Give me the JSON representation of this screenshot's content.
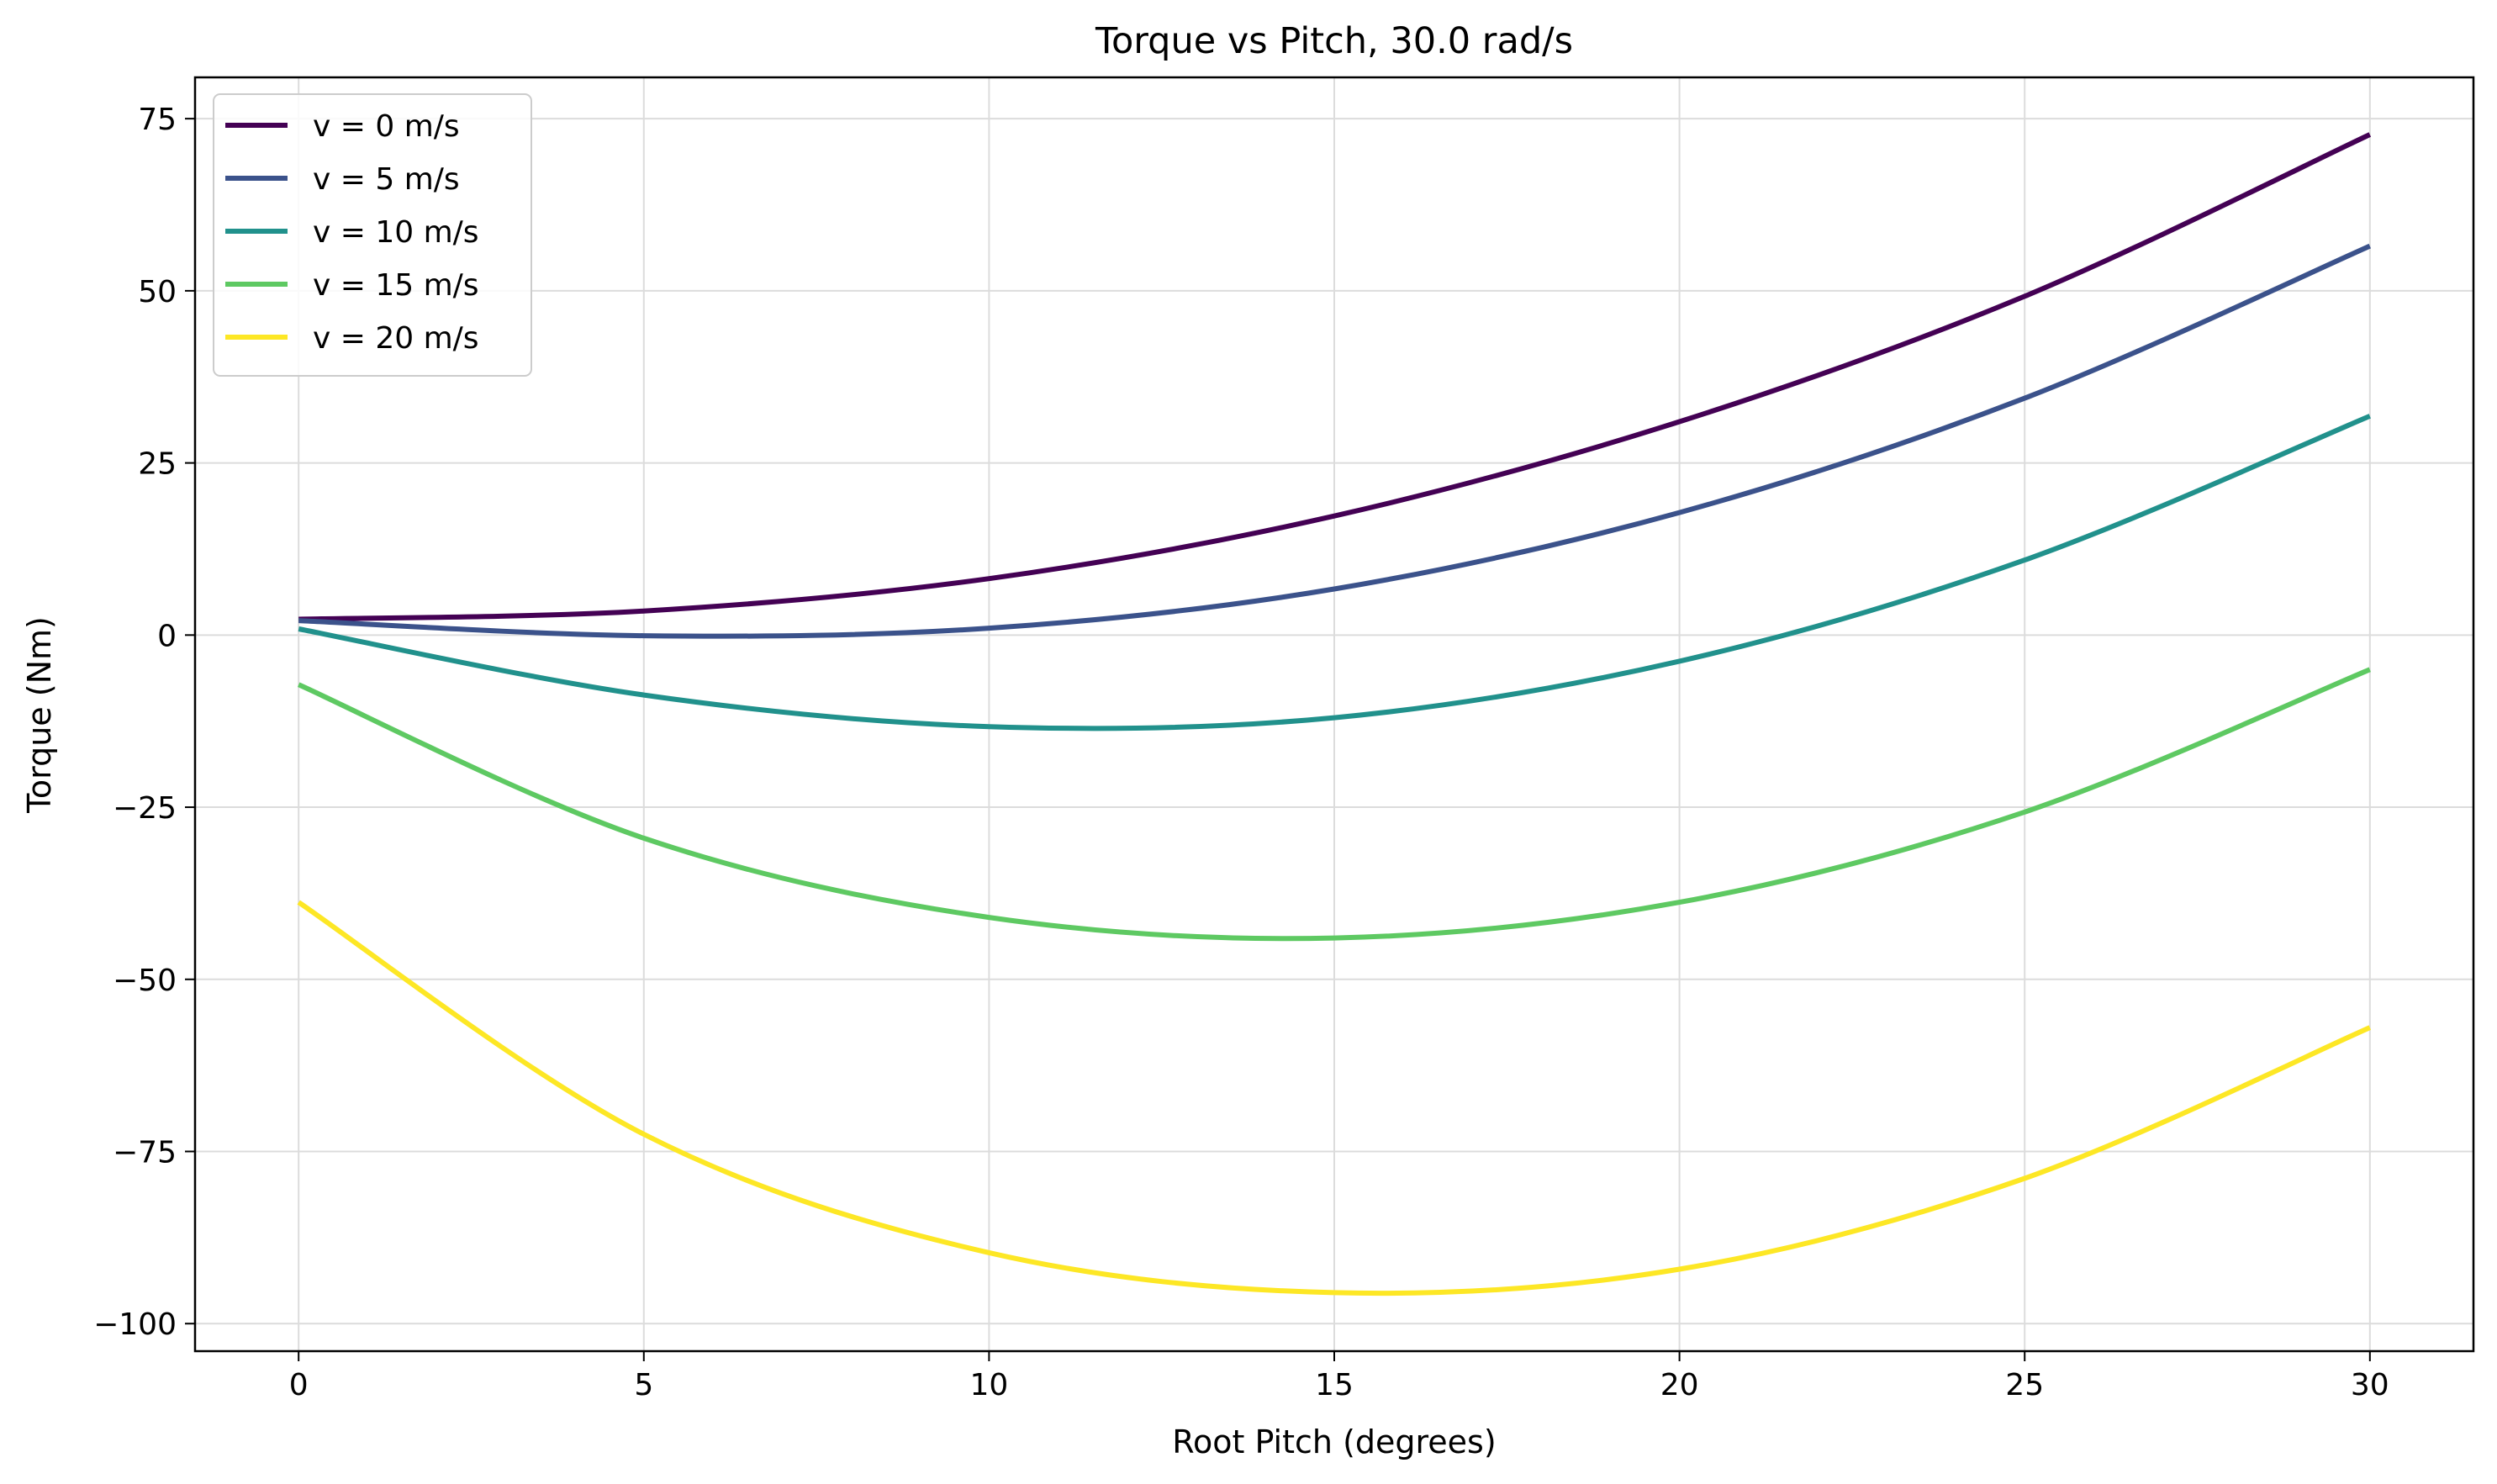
{
  "chart_data": {
    "type": "line",
    "title": "Torque vs Pitch, 30.0 rad/s",
    "xlabel": "Root Pitch (degrees)",
    "ylabel": "Torque (Nm)",
    "xlim": [
      -1.5,
      31.5
    ],
    "ylim": [
      -104,
      81
    ],
    "xticks": [
      0,
      5,
      10,
      15,
      20,
      25,
      30
    ],
    "xtick_labels": [
      "0",
      "5",
      "10",
      "15",
      "20",
      "25",
      "30"
    ],
    "yticks": [
      75,
      50,
      25,
      0,
      -25,
      -50,
      -75,
      -100
    ],
    "ytick_labels": [
      "75",
      "50",
      "25",
      "0",
      "−25",
      "−50",
      "−75",
      "−100"
    ],
    "grid": true,
    "legend_position": "top-left",
    "x": [
      0,
      5,
      10,
      15,
      20,
      25,
      30
    ],
    "series": [
      {
        "name": "v = 0 m/s",
        "color": "#440154",
        "values": [
          2.3,
          3.5,
          8.2,
          17.3,
          31.0,
          49.2,
          72.7
        ]
      },
      {
        "name": "v = 5 m/s",
        "color": "#3b528b",
        "values": [
          2.1,
          -0.1,
          1.0,
          6.7,
          17.8,
          34.4,
          56.5
        ]
      },
      {
        "name": "v = 10 m/s",
        "color": "#21918c",
        "values": [
          0.9,
          -8.7,
          -13.3,
          -12.0,
          -3.8,
          10.9,
          31.8
        ]
      },
      {
        "name": "v = 15 m/s",
        "color": "#5ec962",
        "values": [
          -7.2,
          -29.5,
          -41.0,
          -44.0,
          -38.8,
          -25.7,
          -5.0
        ]
      },
      {
        "name": "v = 20 m/s",
        "color": "#fde725",
        "values": [
          -38.8,
          -72.5,
          -89.7,
          -95.5,
          -92.1,
          -78.9,
          -57.0
        ]
      }
    ]
  }
}
